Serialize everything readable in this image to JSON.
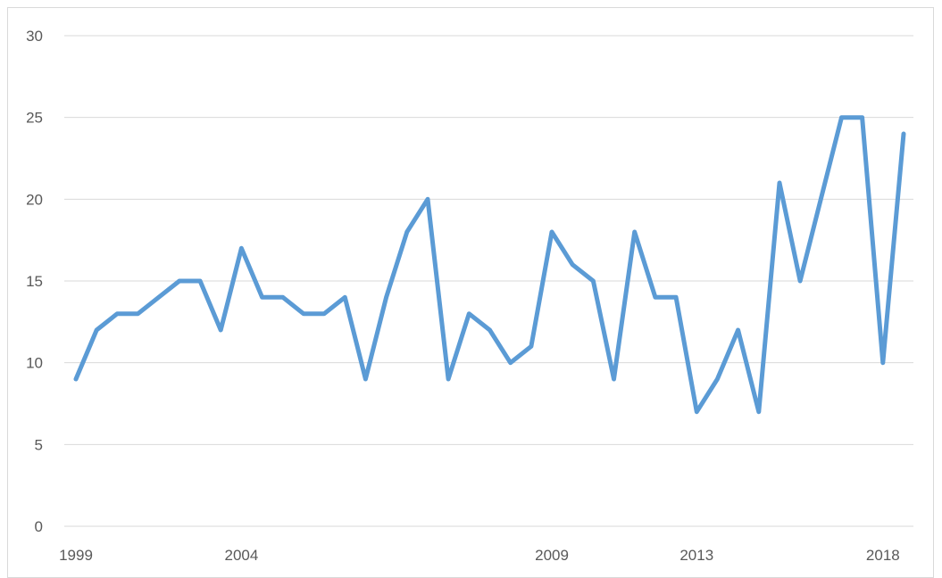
{
  "chart_data": {
    "type": "line",
    "title": "",
    "xlabel": "",
    "ylabel": "",
    "ylim": [
      0,
      30
    ],
    "y_ticks": [
      0,
      5,
      10,
      15,
      20,
      25,
      30
    ],
    "grid": true,
    "legend": "none",
    "x_tick_labels": [
      {
        "index": 0,
        "label": "1999"
      },
      {
        "index": 8,
        "label": "2004"
      },
      {
        "index": 23,
        "label": "2009"
      },
      {
        "index": 30,
        "label": "2013"
      },
      {
        "index": 39,
        "label": "2018"
      }
    ],
    "series": [
      {
        "color": "#5b9bd5",
        "values": [
          9,
          12,
          13,
          13,
          14,
          15,
          15,
          12,
          17,
          14,
          14,
          13,
          13,
          14,
          9,
          14,
          18,
          20,
          9,
          13,
          12,
          10,
          11,
          18,
          16,
          15,
          9,
          18,
          14,
          14,
          7,
          9,
          12,
          7,
          21,
          15,
          20,
          25,
          25,
          10,
          24
        ]
      }
    ]
  }
}
